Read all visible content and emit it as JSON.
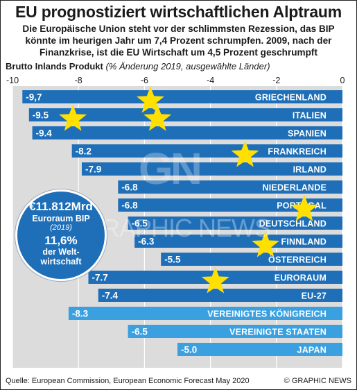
{
  "header": {
    "title": "EU prognostiziert wirtschaftlichen Alptraum",
    "subtitle": "Die Europäische Union steht vor der schlimmsten Rezession, das BIP könnte im heurigen Jahr um 7,4 Prozent schrumpfen. 2009, nach der Finanzkrise, ist die EU Wirtschaft um 4,5 Prozent geschrumpft"
  },
  "axis_label": {
    "bold": "Brutto Inlands Produkt",
    "italic": "(% Änderung 2019, ausgewählte Länder)"
  },
  "info_box": {
    "amount": "€11.812Mrd",
    "label": "Euroraum BIP",
    "year": "(2019)",
    "percent": "11,6%",
    "share_line1": "der Welt-",
    "share_line2": "wirtschaft"
  },
  "watermark": {
    "logo": "GN",
    "text": "GRAPHIC NEWS"
  },
  "footer": {
    "source": "Quelle: European Commission, European Economic Forecast May 2020",
    "credit": "© GRAPHIC NEWS"
  },
  "colors": {
    "background": "#ffffff",
    "plot_area": "#dcdcdc",
    "bar_dark": "#1f6fb8",
    "bar_light": "#3aa0e0",
    "star": "#ffe000",
    "text": "#1a1a1a"
  },
  "chart_data": {
    "type": "bar",
    "orientation": "horizontal",
    "xlim": [
      -10,
      0
    ],
    "x_ticks": [
      -10,
      -8,
      -6,
      -4,
      -2,
      0
    ],
    "x_tick_labels": [
      "-10",
      "-8",
      "-6",
      "-4",
      "-2",
      "0"
    ],
    "grid": true,
    "categories": [
      "GRIECHENLAND",
      "ITALIEN",
      "SPANIEN",
      "FRANKREICH",
      "IRLAND",
      "NIEDERLANDE",
      "PORTUGAL",
      "DEUTSCHLAND",
      "FINNLAND",
      "ÖSTERREICH",
      "EURORAUM",
      "EU-27",
      "VEREINIGTES KÖNIGREICH",
      "VEREINIGTE STAATEN",
      "JAPAN"
    ],
    "values": [
      -9.7,
      -9.5,
      -9.4,
      -8.2,
      -7.9,
      -6.8,
      -6.8,
      -6.5,
      -6.3,
      -5.5,
      -7.7,
      -7.4,
      -8.3,
      -6.5,
      -5.0
    ],
    "value_labels": [
      "-9,7",
      "-9.5",
      "-9.4",
      "-8.2",
      "-7.9",
      "-6.8",
      "-6.8",
      "-6.5",
      "-6.3",
      "-5.5",
      "-7.7",
      "-7.4",
      "-8.3",
      "-6.5",
      "-5.0"
    ],
    "bar_color_group": [
      "eu",
      "eu",
      "eu",
      "eu",
      "eu",
      "eu",
      "eu",
      "eu",
      "eu",
      "eu",
      "eu",
      "eu",
      "non-eu",
      "non-eu",
      "non-eu"
    ]
  }
}
